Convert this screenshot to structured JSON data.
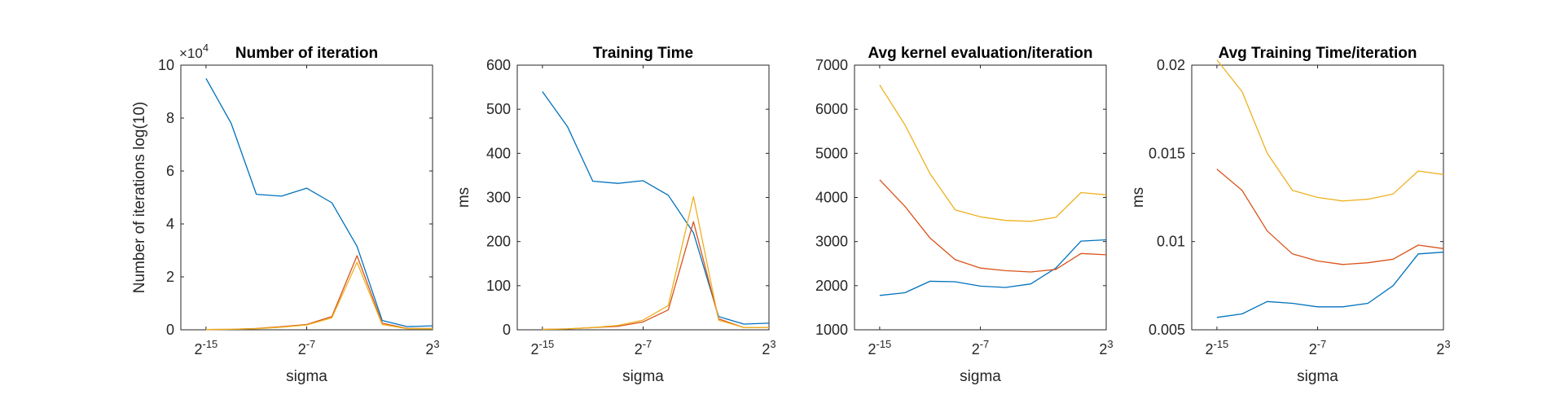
{
  "chart_data": [
    {
      "type": "line",
      "title": "Number of iteration",
      "exponent_label": "×10",
      "exponent_value": "4",
      "xlabel": "sigma",
      "ylabel": "Number of iterations log(10)",
      "x": [
        -15,
        -13,
        -11,
        -9,
        -7,
        -5,
        -3,
        -1,
        1,
        3
      ],
      "x_ticks": [
        -15,
        -7,
        3
      ],
      "x_tick_labels": [
        "2^-15",
        "2^-7",
        "2^3"
      ],
      "ylim": [
        0,
        10
      ],
      "y_ticks": [
        0,
        2,
        4,
        6,
        8,
        10
      ],
      "y_tick_labels": [
        "0",
        "2",
        "4",
        "6",
        "8",
        "10"
      ],
      "series": [
        {
          "color": "#0072BD",
          "values": [
            9.5,
            7.8,
            5.12,
            5.05,
            5.35,
            4.8,
            3.15,
            0.35,
            0.12,
            0.15
          ]
        },
        {
          "color": "#D95319",
          "values": [
            0.01,
            0.02,
            0.05,
            0.12,
            0.2,
            0.5,
            2.8,
            0.25,
            0.05,
            0.05
          ]
        },
        {
          "color": "#EDB120",
          "values": [
            0.01,
            0.02,
            0.04,
            0.1,
            0.18,
            0.45,
            2.55,
            0.2,
            0.04,
            0.04
          ]
        }
      ]
    },
    {
      "type": "line",
      "title": "Training Time",
      "xlabel": "sigma",
      "ylabel": "ms",
      "x": [
        -15,
        -13,
        -11,
        -9,
        -7,
        -5,
        -3,
        -1,
        1,
        3
      ],
      "x_ticks": [
        -15,
        -7,
        3
      ],
      "x_tick_labels": [
        "2^-15",
        "2^-7",
        "2^3"
      ],
      "ylim": [
        0,
        600
      ],
      "y_ticks": [
        0,
        100,
        200,
        300,
        400,
        500,
        600
      ],
      "y_tick_labels": [
        "0",
        "100",
        "200",
        "300",
        "400",
        "500",
        "600"
      ],
      "series": [
        {
          "color": "#0072BD",
          "values": [
            540,
            460,
            337,
            332,
            338,
            305,
            220,
            30,
            13,
            15
          ]
        },
        {
          "color": "#D95319",
          "values": [
            1,
            2,
            5,
            8,
            18,
            45,
            245,
            25,
            5,
            5
          ]
        },
        {
          "color": "#EDB120",
          "values": [
            1,
            2,
            5,
            10,
            22,
            55,
            302,
            22,
            5,
            5
          ]
        }
      ]
    },
    {
      "type": "line",
      "title": "Avg kernel evaluation/iteration",
      "xlabel": "sigma",
      "ylabel": "",
      "x": [
        -15,
        -13,
        -11,
        -9,
        -7,
        -5,
        -3,
        -1,
        1,
        3
      ],
      "x_ticks": [
        -15,
        -7,
        3
      ],
      "x_tick_labels": [
        "2^-15",
        "2^-7",
        "2^3"
      ],
      "ylim": [
        1000,
        7000
      ],
      "y_ticks": [
        1000,
        2000,
        3000,
        4000,
        5000,
        6000,
        7000
      ],
      "y_tick_labels": [
        "1000",
        "2000",
        "3000",
        "4000",
        "5000",
        "6000",
        "7000"
      ],
      "series": [
        {
          "color": "#0072BD",
          "values": [
            1780,
            1840,
            2100,
            2090,
            1990,
            1960,
            2040,
            2400,
            3010,
            3040
          ]
        },
        {
          "color": "#D95319",
          "values": [
            4400,
            3800,
            3080,
            2590,
            2400,
            2340,
            2310,
            2370,
            2730,
            2700
          ]
        },
        {
          "color": "#EDB120",
          "values": [
            6550,
            5650,
            4540,
            3720,
            3560,
            3480,
            3460,
            3550,
            4110,
            4060
          ]
        }
      ]
    },
    {
      "type": "line",
      "title": "Avg Training Time/iteration",
      "xlabel": "sigma",
      "ylabel": "ms",
      "x": [
        -15,
        -13,
        -11,
        -9,
        -7,
        -5,
        -3,
        -1,
        1,
        3
      ],
      "x_ticks": [
        -15,
        -7,
        3
      ],
      "x_tick_labels": [
        "2^-15",
        "2^-7",
        "2^3"
      ],
      "ylim": [
        0.005,
        0.02
      ],
      "y_ticks": [
        0.005,
        0.01,
        0.015,
        0.02
      ],
      "y_tick_labels": [
        "0.005",
        "0.01",
        "0.015",
        "0.02"
      ],
      "series": [
        {
          "color": "#0072BD",
          "values": [
            0.0057,
            0.0059,
            0.0066,
            0.0065,
            0.0063,
            0.0063,
            0.0065,
            0.0075,
            0.0093,
            0.0094
          ]
        },
        {
          "color": "#D95319",
          "values": [
            0.0141,
            0.0129,
            0.0106,
            0.0093,
            0.0089,
            0.0087,
            0.0088,
            0.009,
            0.0098,
            0.0096
          ]
        },
        {
          "color": "#EDB120",
          "values": [
            0.0203,
            0.0185,
            0.015,
            0.0129,
            0.0125,
            0.0123,
            0.0124,
            0.0127,
            0.014,
            0.0138
          ]
        }
      ]
    }
  ]
}
